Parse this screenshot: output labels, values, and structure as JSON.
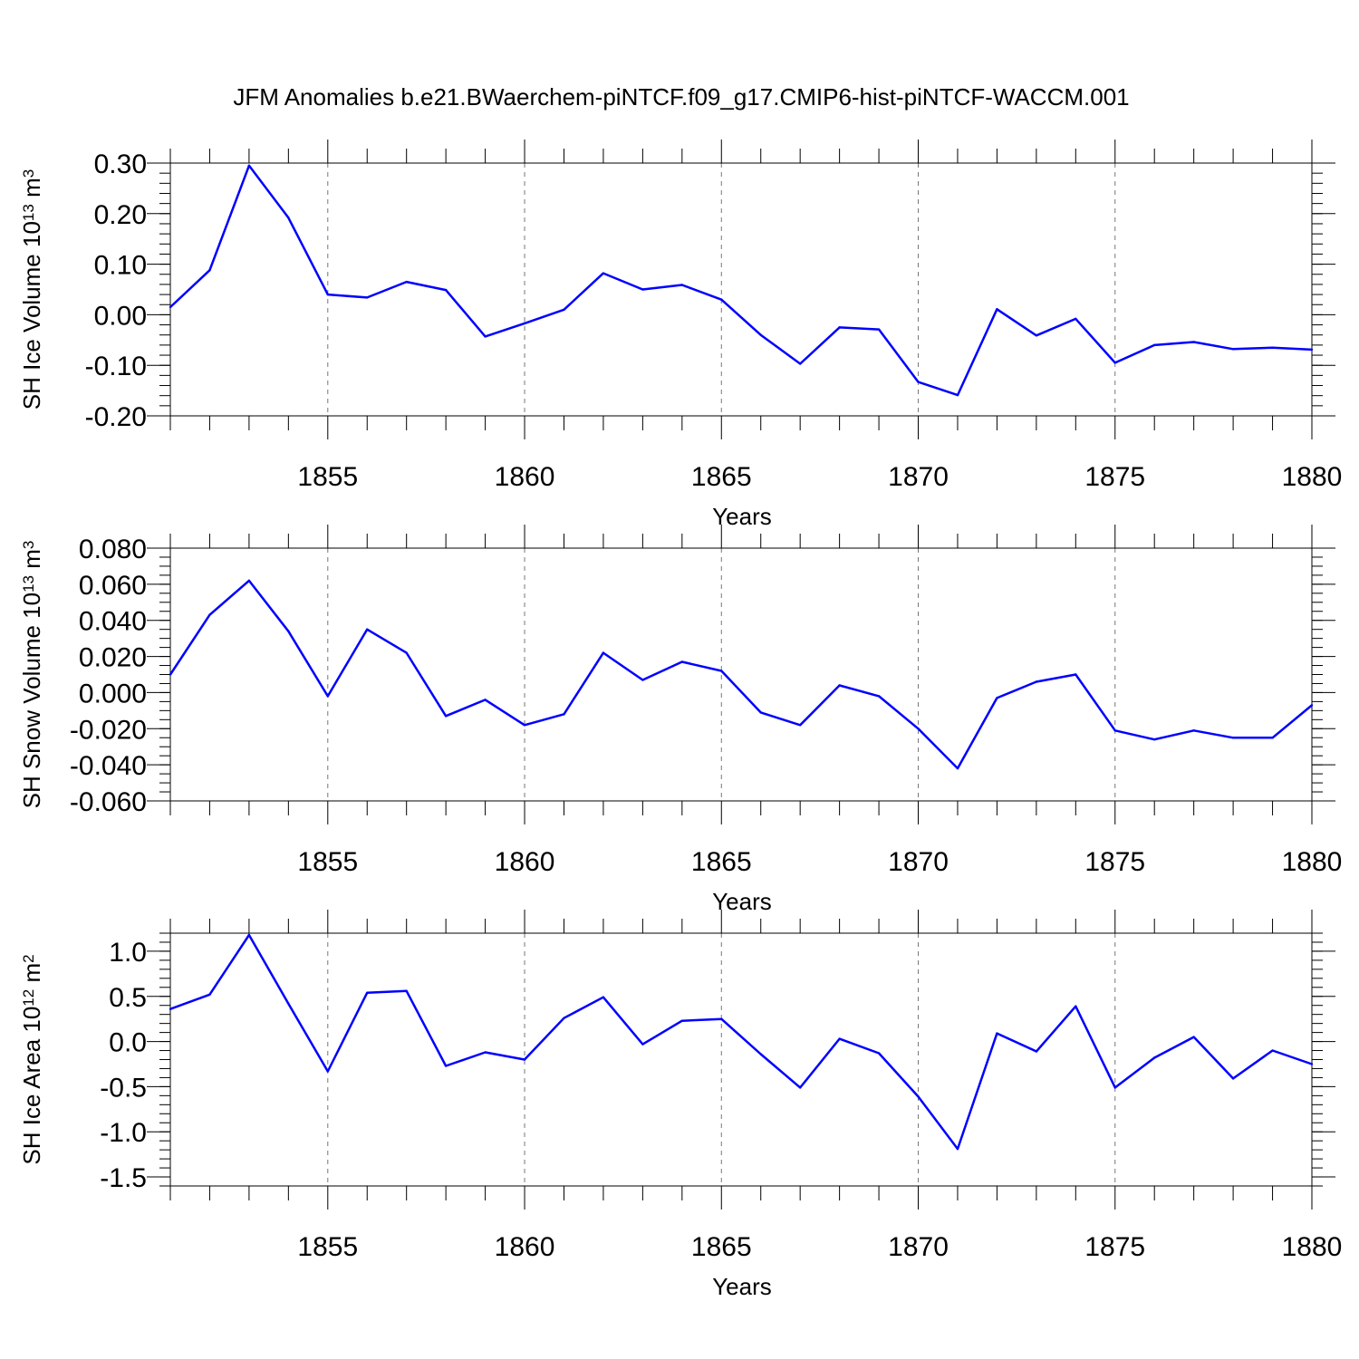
{
  "title": "JFM Anomalies b.e21.BWaerchem-piNTCF.f09_g17.CMIP6-hist-piNTCF-WACCM.001",
  "chart_data": [
    {
      "type": "line",
      "id": "ice-volume",
      "ylabel": {
        "main": "SH Ice Volume 10",
        "sup1": "13",
        "mid": " m",
        "sup2": "3"
      },
      "xlabel": "Years",
      "xlim": [
        1851,
        1880
      ],
      "ylim": [
        -0.2,
        0.3
      ],
      "xticks": [
        1855,
        1860,
        1865,
        1870,
        1875,
        1880
      ],
      "yticks": [
        -0.2,
        -0.1,
        0.0,
        0.1,
        0.2,
        0.3
      ],
      "ytick_labels": [
        "-0.20",
        "-0.10",
        "0.00",
        "0.10",
        "0.20",
        "0.30"
      ],
      "y_minor_step": 0.02,
      "line_color": "#0000ff",
      "series": [
        {
          "name": "SH Ice Volume",
          "x": [
            1851,
            1852,
            1853,
            1854,
            1855,
            1856,
            1857,
            1858,
            1859,
            1860,
            1861,
            1862,
            1863,
            1864,
            1865,
            1866,
            1867,
            1868,
            1869,
            1870,
            1871,
            1872,
            1873,
            1874,
            1875,
            1876,
            1877,
            1878,
            1879,
            1880
          ],
          "values": [
            0.015,
            0.088,
            0.295,
            0.192,
            0.04,
            0.034,
            0.065,
            0.049,
            -0.043,
            -0.017,
            0.01,
            0.082,
            0.05,
            0.059,
            0.03,
            -0.04,
            -0.097,
            -0.025,
            -0.029,
            -0.133,
            -0.159,
            0.011,
            -0.041,
            -0.008,
            -0.095,
            -0.06,
            -0.054,
            -0.068,
            -0.065,
            -0.069
          ]
        }
      ]
    },
    {
      "type": "line",
      "id": "snow-volume",
      "ylabel": {
        "main": "SH Snow Volume 10",
        "sup1": "13",
        "mid": " m",
        "sup2": "3"
      },
      "xlabel": "Years",
      "xlim": [
        1851,
        1880
      ],
      "ylim": [
        -0.06,
        0.08
      ],
      "xticks": [
        1855,
        1860,
        1865,
        1870,
        1875,
        1880
      ],
      "yticks": [
        -0.06,
        -0.04,
        -0.02,
        0.0,
        0.02,
        0.04,
        0.06,
        0.08
      ],
      "ytick_labels": [
        "-0.060",
        "-0.040",
        "-0.020",
        "0.000",
        "0.020",
        "0.040",
        "0.060",
        "0.080"
      ],
      "y_minor_step": 0.005,
      "line_color": "#0000ff",
      "series": [
        {
          "name": "SH Snow Volume",
          "x": [
            1851,
            1852,
            1853,
            1854,
            1855,
            1856,
            1857,
            1858,
            1859,
            1860,
            1861,
            1862,
            1863,
            1864,
            1865,
            1866,
            1867,
            1868,
            1869,
            1870,
            1871,
            1872,
            1873,
            1874,
            1875,
            1876,
            1877,
            1878,
            1879,
            1880
          ],
          "values": [
            0.01,
            0.043,
            0.062,
            0.034,
            -0.002,
            0.035,
            0.022,
            -0.013,
            -0.004,
            -0.018,
            -0.012,
            0.022,
            0.007,
            0.017,
            0.012,
            -0.011,
            -0.018,
            0.004,
            -0.002,
            -0.02,
            -0.042,
            -0.003,
            0.006,
            0.01,
            -0.021,
            -0.026,
            -0.021,
            -0.025,
            -0.025,
            -0.007
          ]
        }
      ]
    },
    {
      "type": "line",
      "id": "ice-area",
      "ylabel": {
        "main": "SH Ice Area 10",
        "sup1": "12",
        "mid": " m",
        "sup2": "2"
      },
      "xlabel": "Years",
      "xlim": [
        1851,
        1880
      ],
      "ylim": [
        -1.6,
        1.2
      ],
      "xticks": [
        1855,
        1860,
        1865,
        1870,
        1875,
        1880
      ],
      "yticks": [
        -1.5,
        -1.0,
        -0.5,
        0.0,
        0.5,
        1.0
      ],
      "ytick_labels": [
        "-1.5",
        "-1.0",
        "-0.5",
        "0.0",
        "0.5",
        "1.0"
      ],
      "y_minor_step": 0.1,
      "line_color": "#0000ff",
      "series": [
        {
          "name": "SH Ice Area",
          "x": [
            1851,
            1852,
            1853,
            1854,
            1855,
            1856,
            1857,
            1858,
            1859,
            1860,
            1861,
            1862,
            1863,
            1864,
            1865,
            1866,
            1867,
            1868,
            1869,
            1870,
            1871,
            1872,
            1873,
            1874,
            1875,
            1876,
            1877,
            1878,
            1879,
            1880
          ],
          "values": [
            0.36,
            0.52,
            1.18,
            0.42,
            -0.33,
            0.54,
            0.56,
            -0.27,
            -0.12,
            -0.2,
            0.26,
            0.49,
            -0.03,
            0.23,
            0.25,
            -0.14,
            -0.51,
            0.03,
            -0.13,
            -0.61,
            -1.19,
            0.09,
            -0.11,
            0.39,
            -0.51,
            -0.18,
            0.05,
            -0.41,
            -0.1,
            -0.25
          ]
        }
      ]
    }
  ]
}
